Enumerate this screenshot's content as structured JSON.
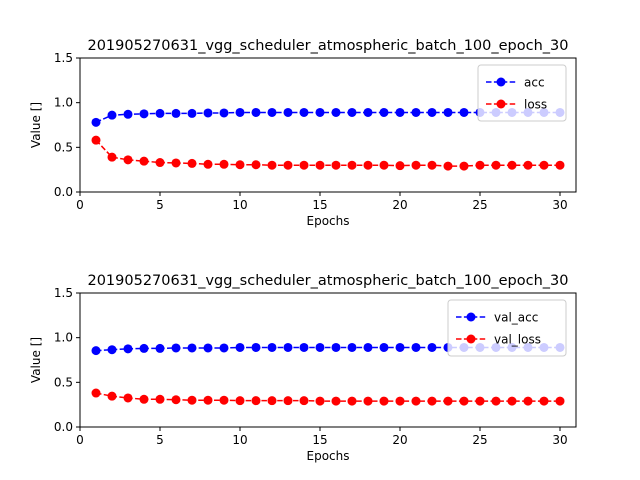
{
  "chart_data": [
    {
      "type": "line",
      "title": "201905270631_vgg_scheduler_atmospheric_batch_100_epoch_30",
      "xlabel": "Epochs",
      "ylabel": "Value []",
      "xlim": [
        0,
        31
      ],
      "ylim": [
        0,
        1.5
      ],
      "xticks": [
        "0",
        "5",
        "10",
        "15",
        "20",
        "25",
        "30"
      ],
      "yticks": [
        "0.0",
        "0.5",
        "1.0",
        "1.5"
      ],
      "grid": false,
      "legend_position": "top-right",
      "x": [
        1,
        2,
        3,
        4,
        5,
        6,
        7,
        8,
        9,
        10,
        11,
        12,
        13,
        14,
        15,
        16,
        17,
        18,
        19,
        20,
        21,
        22,
        23,
        24,
        25,
        26,
        27,
        28,
        29,
        30
      ],
      "series": [
        {
          "name": "acc",
          "color": "#0000ff",
          "values": [
            0.78,
            0.86,
            0.87,
            0.875,
            0.88,
            0.88,
            0.88,
            0.885,
            0.885,
            0.89,
            0.89,
            0.89,
            0.89,
            0.89,
            0.89,
            0.89,
            0.89,
            0.89,
            0.89,
            0.89,
            0.89,
            0.89,
            0.89,
            0.89,
            0.89,
            0.89,
            0.89,
            0.89,
            0.89,
            0.89
          ]
        },
        {
          "name": "loss",
          "color": "#ff0000",
          "values": [
            0.58,
            0.39,
            0.36,
            0.345,
            0.33,
            0.325,
            0.32,
            0.31,
            0.31,
            0.305,
            0.305,
            0.3,
            0.3,
            0.3,
            0.3,
            0.3,
            0.3,
            0.3,
            0.3,
            0.295,
            0.3,
            0.3,
            0.29,
            0.29,
            0.3,
            0.3,
            0.3,
            0.3,
            0.3,
            0.3
          ]
        }
      ]
    },
    {
      "type": "line",
      "title": "201905270631_vgg_scheduler_atmospheric_batch_100_epoch_30",
      "xlabel": "Epochs",
      "ylabel": "Value []",
      "xlim": [
        0,
        31
      ],
      "ylim": [
        0,
        1.5
      ],
      "xticks": [
        "0",
        "5",
        "10",
        "15",
        "20",
        "25",
        "30"
      ],
      "yticks": [
        "0.0",
        "0.5",
        "1.0",
        "1.5"
      ],
      "grid": false,
      "legend_position": "top-right",
      "x": [
        1,
        2,
        3,
        4,
        5,
        6,
        7,
        8,
        9,
        10,
        11,
        12,
        13,
        14,
        15,
        16,
        17,
        18,
        19,
        20,
        21,
        22,
        23,
        24,
        25,
        26,
        27,
        28,
        29,
        30
      ],
      "series": [
        {
          "name": "val_acc",
          "color": "#0000ff",
          "values": [
            0.855,
            0.865,
            0.875,
            0.88,
            0.88,
            0.885,
            0.885,
            0.885,
            0.885,
            0.89,
            0.89,
            0.89,
            0.89,
            0.89,
            0.89,
            0.89,
            0.89,
            0.89,
            0.89,
            0.89,
            0.89,
            0.89,
            0.89,
            0.89,
            0.89,
            0.89,
            0.89,
            0.89,
            0.89,
            0.89
          ]
        },
        {
          "name": "val_loss",
          "color": "#ff0000",
          "values": [
            0.38,
            0.345,
            0.325,
            0.31,
            0.31,
            0.305,
            0.3,
            0.3,
            0.3,
            0.295,
            0.295,
            0.295,
            0.295,
            0.295,
            0.29,
            0.29,
            0.29,
            0.29,
            0.29,
            0.29,
            0.29,
            0.29,
            0.29,
            0.29,
            0.29,
            0.29,
            0.29,
            0.29,
            0.29,
            0.29
          ]
        }
      ]
    }
  ]
}
